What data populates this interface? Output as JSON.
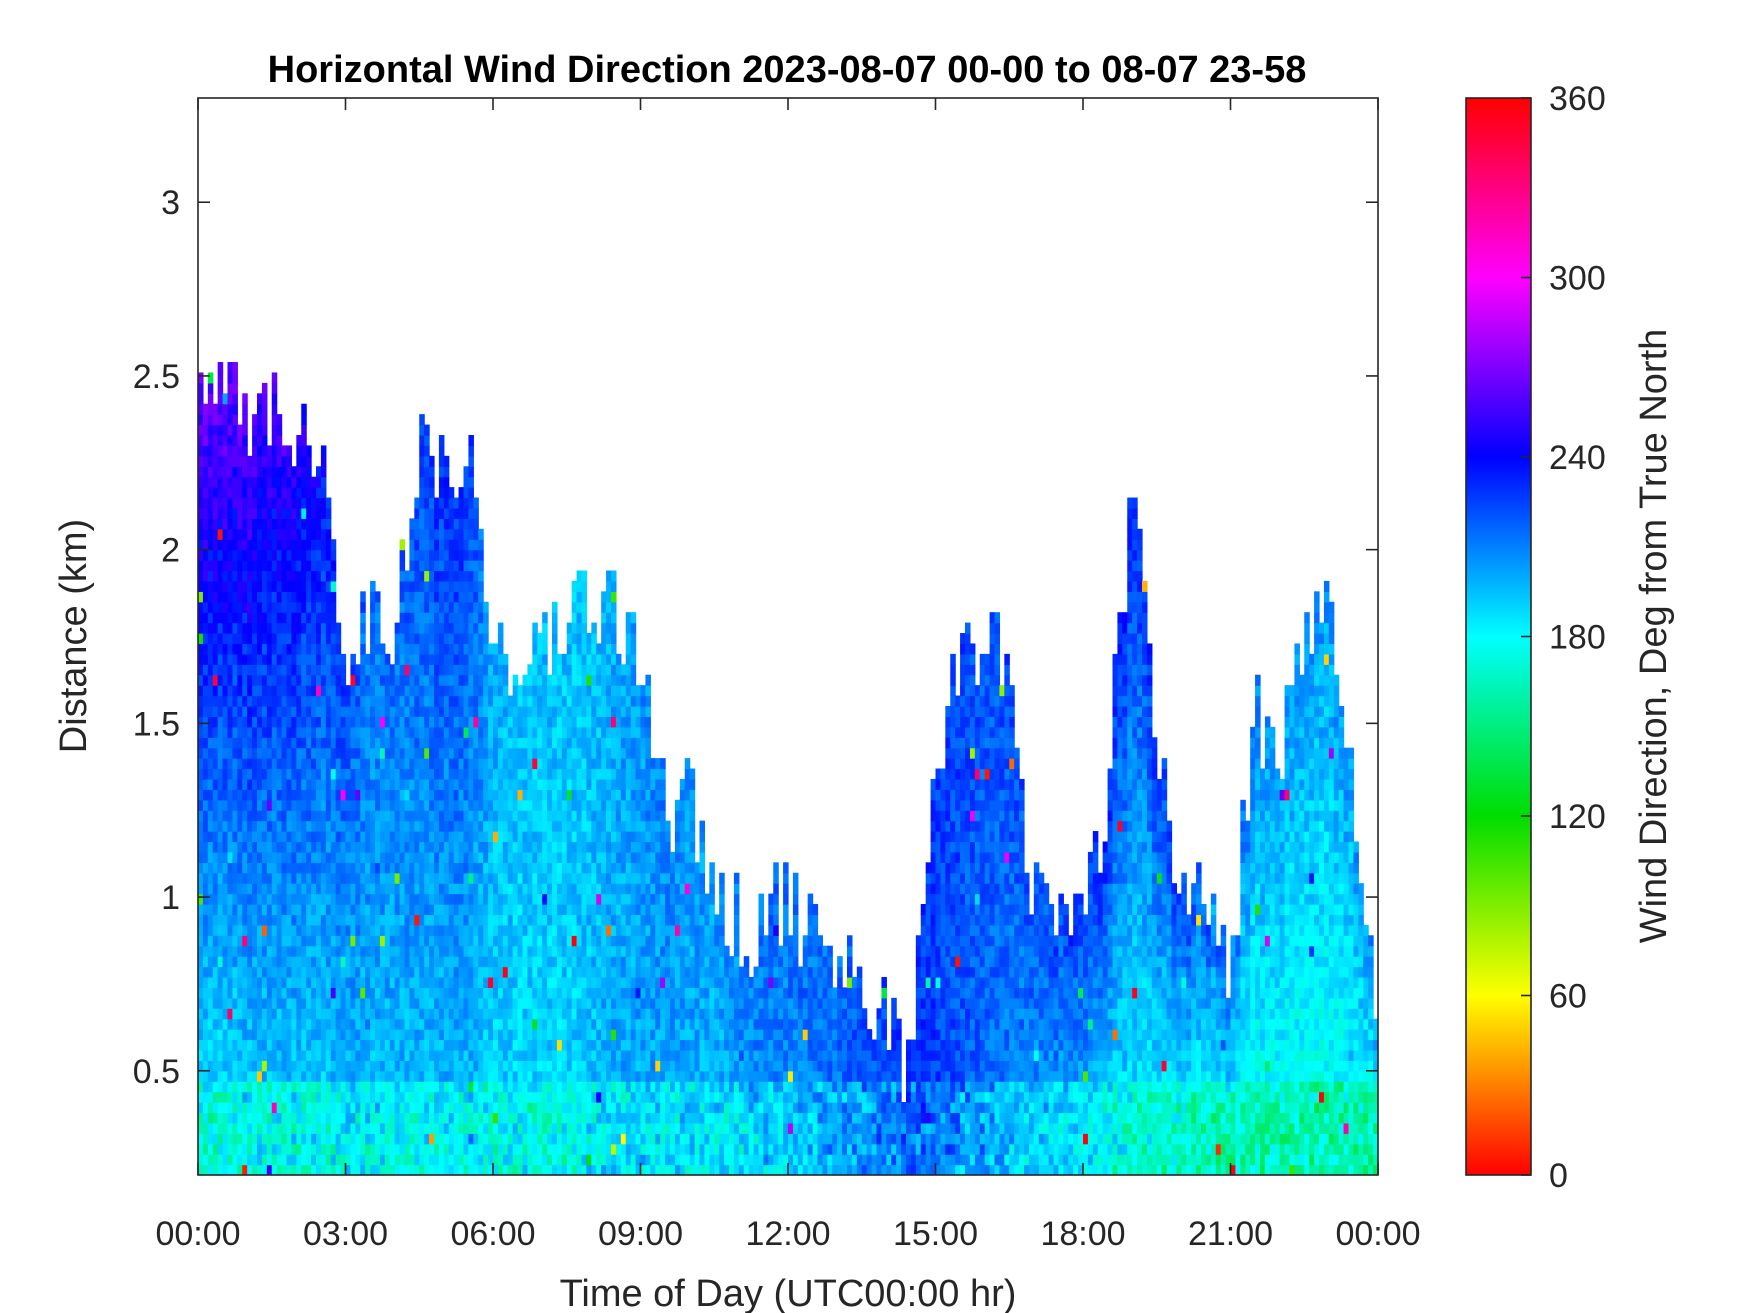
{
  "chart_data": {
    "type": "heatmap",
    "title": "Horizontal Wind Direction 2023-08-07 00-00 to 08-07 23-58",
    "xlabel": "Time of Day (UTC00:00 hr)",
    "ylabel": "Distance (km)",
    "x_unit": "hours",
    "xlim": [
      0,
      24
    ],
    "ylim": [
      0.2,
      3.3
    ],
    "x_tick_values": [
      0,
      3,
      6,
      9,
      12,
      15,
      18,
      21,
      24
    ],
    "x_tick_labels": [
      "00:00",
      "03:00",
      "06:00",
      "09:00",
      "12:00",
      "15:00",
      "18:00",
      "21:00",
      "00:00"
    ],
    "y_tick_values": [
      0.5,
      1,
      1.5,
      2,
      2.5,
      3
    ],
    "y_tick_labels": [
      "0.5",
      "1",
      "1.5",
      "2",
      "2.5",
      "3"
    ],
    "colorbar": {
      "label": "Wind Direction, Deg from True North",
      "range": [
        0,
        360
      ],
      "tick_values": [
        0,
        60,
        120,
        180,
        240,
        300,
        360
      ],
      "tick_labels": [
        "0",
        "60",
        "120",
        "180",
        "240",
        "300",
        "360"
      ],
      "colormap": [
        {
          "value": 0,
          "color": "#ff0000"
        },
        {
          "value": 60,
          "color": "#ffff00"
        },
        {
          "value": 120,
          "color": "#00dd00"
        },
        {
          "value": 180,
          "color": "#00ffff"
        },
        {
          "value": 240,
          "color": "#0000ff"
        },
        {
          "value": 300,
          "color": "#ff00ff"
        },
        {
          "value": 360,
          "color": "#ff0000"
        }
      ]
    },
    "grid": false,
    "data_profile": {
      "times_h": [
        0,
        0.5,
        1,
        1.5,
        2,
        2.5,
        3,
        3.5,
        4,
        4.5,
        5,
        5.5,
        6,
        6.5,
        7,
        7.5,
        8,
        8.5,
        9,
        9.5,
        10,
        10.5,
        11,
        11.5,
        12,
        12.5,
        13,
        13.5,
        14,
        14.5,
        15,
        15.5,
        16,
        16.5,
        17,
        17.5,
        18,
        18.5,
        19,
        19.5,
        20,
        20.5,
        21,
        21.5,
        22,
        22.5,
        23,
        23.5,
        24
      ],
      "max_range_km": [
        2.45,
        2.45,
        2.35,
        2.4,
        2.3,
        2.2,
        1.7,
        1.8,
        1.75,
        2.3,
        2.25,
        2.3,
        1.75,
        1.6,
        1.7,
        1.8,
        1.8,
        1.8,
        1.7,
        1.2,
        1.3,
        1.0,
        0.9,
        0.9,
        1.0,
        0.85,
        0.85,
        0.7,
        0.6,
        0.5,
        1.4,
        1.6,
        1.8,
        1.7,
        0.95,
        0.95,
        0.9,
        1.3,
        2.1,
        1.5,
        1.0,
        1.0,
        0.8,
        1.5,
        1.4,
        1.8,
        1.8,
        1.3,
        0.5
      ],
      "low_level_direction_deg": [
        185,
        185,
        190,
        190,
        190,
        190,
        195,
        195,
        195,
        195,
        195,
        195,
        190,
        190,
        190,
        190,
        195,
        200,
        200,
        200,
        200,
        195,
        200,
        205,
        205,
        210,
        215,
        220,
        225,
        230,
        225,
        220,
        215,
        210,
        205,
        200,
        195,
        190,
        185,
        180,
        180,
        175,
        175,
        175,
        175,
        175,
        175,
        175,
        175
      ],
      "upper_level_direction_deg": [
        265,
        265,
        260,
        255,
        250,
        240,
        225,
        215,
        215,
        225,
        230,
        230,
        200,
        195,
        195,
        195,
        195,
        200,
        205,
        210,
        205,
        205,
        210,
        215,
        215,
        215,
        215,
        220,
        225,
        230,
        225,
        225,
        220,
        225,
        220,
        225,
        230,
        232,
        232,
        230,
        225,
        220,
        215,
        210,
        205,
        205,
        205,
        205,
        205
      ]
    }
  }
}
